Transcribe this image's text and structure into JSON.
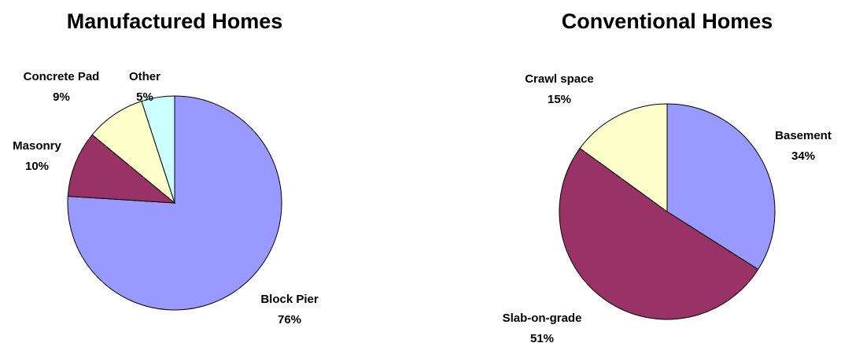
{
  "chart_data": [
    {
      "type": "pie",
      "title": "Manufactured Homes",
      "categories": [
        "Block Pier",
        "Masonry",
        "Concrete Pad",
        "Other"
      ],
      "values": [
        76,
        10,
        9,
        5
      ],
      "value_labels": [
        "76%",
        "10%",
        "9%",
        "5%"
      ],
      "colors": [
        "#9999ff",
        "#993366",
        "#ffffcc",
        "#ccffff"
      ]
    },
    {
      "type": "pie",
      "title": "Conventional Homes",
      "categories": [
        "Basement",
        "Slab-on-grade",
        "Crawl space"
      ],
      "values": [
        34,
        51,
        15
      ],
      "value_labels": [
        "34%",
        "51%",
        "15%"
      ],
      "colors": [
        "#9999ff",
        "#993366",
        "#ffffcc"
      ]
    }
  ]
}
